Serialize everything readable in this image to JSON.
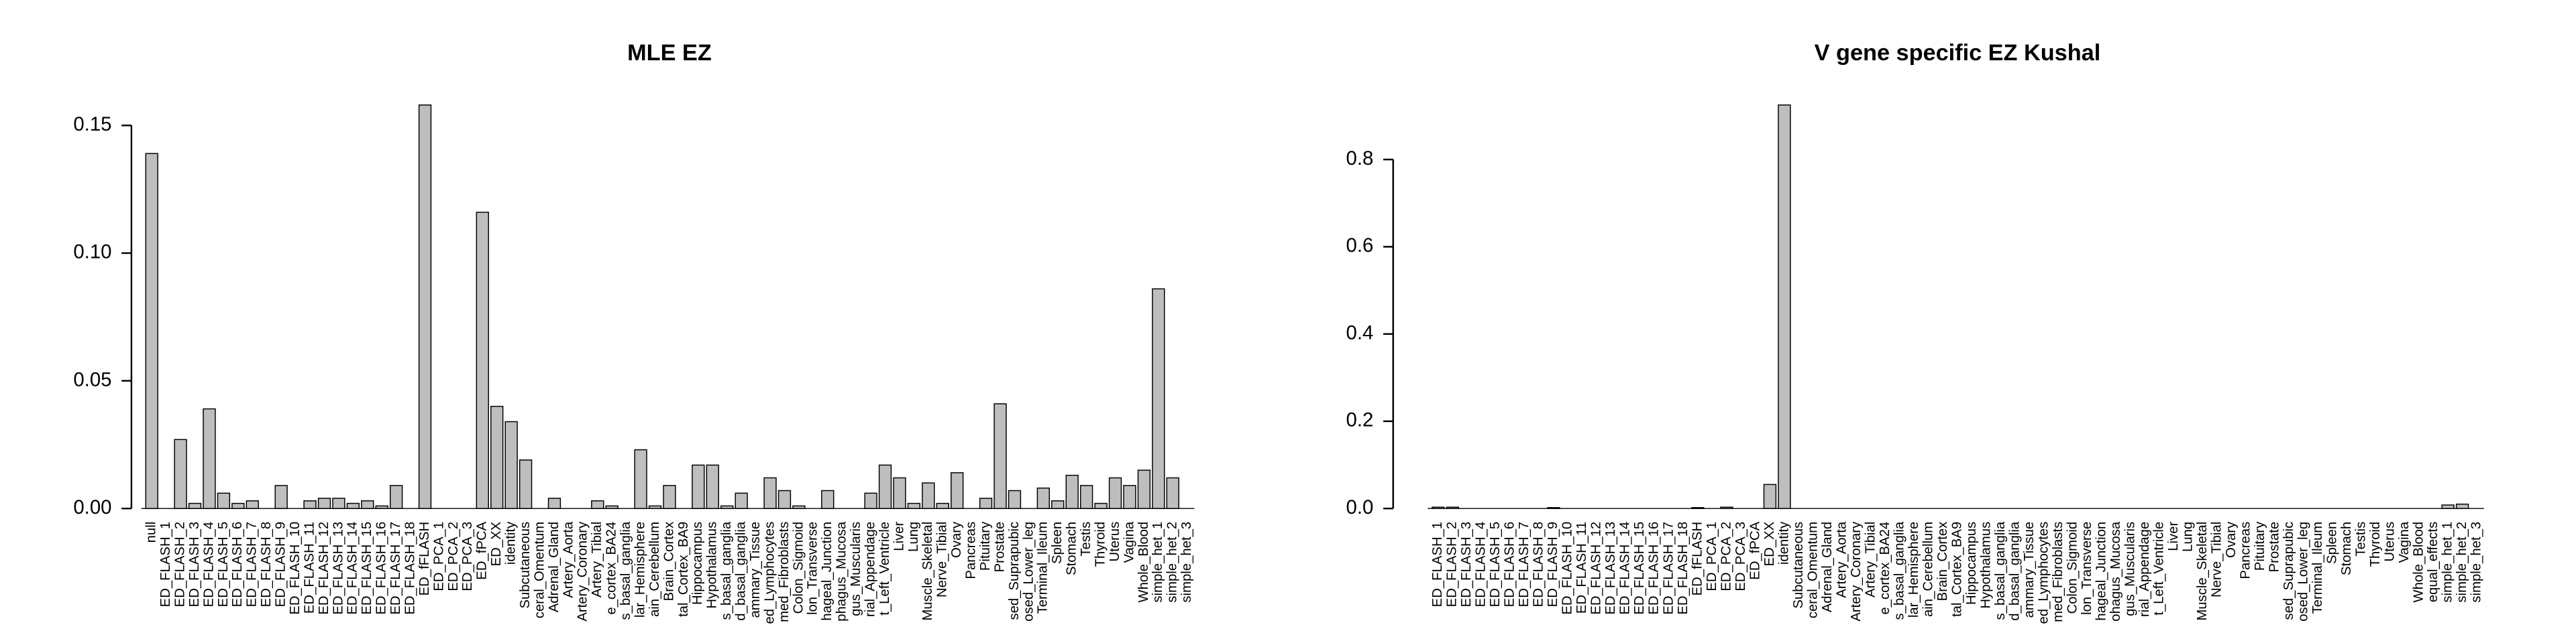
{
  "chart_data": [
    {
      "type": "bar",
      "title": "MLE EZ",
      "categories": [
        "null",
        "ED_FLASH_1",
        "ED_FLASH_2",
        "ED_FLASH_3",
        "ED_FLASH_4",
        "ED_FLASH_5",
        "ED_FLASH_6",
        "ED_FLASH_7",
        "ED_FLASH_8",
        "ED_FLASH_9",
        "ED_FLASH_10",
        "ED_FLASH_11",
        "ED_FLASH_12",
        "ED_FLASH_13",
        "ED_FLASH_14",
        "ED_FLASH_15",
        "ED_FLASH_16",
        "ED_FLASH_17",
        "ED_FLASH_18",
        "ED_fFLASH",
        "ED_PCA_1",
        "ED_PCA_2",
        "ED_PCA_3",
        "ED_fPCA",
        "ED_XX",
        "identity",
        "Subcutaneous",
        "ceral_Omentum",
        "Adrenal_Gland",
        "Artery_Aorta",
        "Artery_Coronary",
        "Artery_Tibial",
        "e_cortex_BA24",
        "s_basal_ganglia",
        "lar_Hemisphere",
        "ain_Cerebellum",
        "Brain_Cortex",
        "tal_Cortex_BA9",
        "Hippocampus",
        "Hypothalamus",
        "s_basal_ganglia",
        "d_basal_ganglia",
        "ammary_Tissue",
        "ed_Lymphocytes",
        "med_Fibroblasts",
        "Colon_Sigmoid",
        "lon_Transverse",
        "hageal_Junction",
        "phagus_Mucosa",
        "gus_Muscularis",
        "rial_Appendage",
        "t_Left_Ventricle",
        "Liver",
        "Lung",
        "Muscle_Skeletal",
        "Nerve_Tibial",
        "Ovary",
        "Pancreas",
        "Pituitary",
        "Prostate",
        "sed_Suprapubic",
        "osed_Lower_leg",
        "Terminal_Ileum",
        "Spleen",
        "Stomach",
        "Testis",
        "Thyroid",
        "Uterus",
        "Vagina",
        "Whole_Blood",
        "simple_het_1",
        "simple_het_2",
        "simple_het_3"
      ],
      "values": [
        0.139,
        0,
        0.027,
        0.002,
        0.039,
        0.006,
        0.002,
        0.003,
        0,
        0.009,
        0,
        0.003,
        0.004,
        0.004,
        0.002,
        0.003,
        0.001,
        0.009,
        0,
        0.158,
        0,
        0,
        0,
        0.116,
        0.04,
        0.034,
        0.019,
        0,
        0.004,
        0,
        0,
        0.003,
        0.001,
        0,
        0.023,
        0.001,
        0.009,
        0,
        0.017,
        0.017,
        0.001,
        0.006,
        0,
        0.012,
        0.007,
        0.001,
        0,
        0.007,
        0,
        0,
        0.006,
        0.017,
        0.012,
        0.002,
        0.01,
        0.002,
        0.014,
        0,
        0.004,
        0.041,
        0.007,
        0,
        0.008,
        0.003,
        0.013,
        0.009,
        0.002,
        0.012,
        0.009,
        0.015,
        0.086,
        0.012,
        0
      ],
      "color": "#bebebe",
      "ylim": [
        0,
        0.158
      ],
      "yticks": [
        {
          "value": 0,
          "label": "0.00"
        },
        {
          "value": 0.05,
          "label": "0.05"
        },
        {
          "value": 0.1,
          "label": "0.10"
        },
        {
          "value": 0.15,
          "label": "0.15"
        }
      ]
    },
    {
      "type": "bar",
      "title": "V gene specific EZ Kushal",
      "categories": [
        "ED_FLASH_1",
        "ED_FLASH_2",
        "ED_FLASH_3",
        "ED_FLASH_4",
        "ED_FLASH_5",
        "ED_FLASH_6",
        "ED_FLASH_7",
        "ED_FLASH_8",
        "ED_FLASH_9",
        "ED_FLASH_10",
        "ED_FLASH_11",
        "ED_FLASH_12",
        "ED_FLASH_13",
        "ED_FLASH_14",
        "ED_FLASH_15",
        "ED_FLASH_16",
        "ED_FLASH_17",
        "ED_FLASH_18",
        "ED_fFLASH",
        "ED_PCA_1",
        "ED_PCA_2",
        "ED_PCA_3",
        "ED_fPCA",
        "ED_XX",
        "identity",
        "Subcutaneous",
        "ceral_Omentum",
        "Adrenal_Gland",
        "Artery_Aorta",
        "Artery_Coronary",
        "Artery_Tibial",
        "e_cortex_BA24",
        "s_basal_ganglia",
        "lar_Hemisphere",
        "ain_Cerebellum",
        "Brain_Cortex",
        "tal_Cortex_BA9",
        "Hippocampus",
        "Hypothalamus",
        "s_basal_ganglia",
        "d_basal_ganglia",
        "ammary_Tissue",
        "ed_Lymphocytes",
        "med_Fibroblasts",
        "Colon_Sigmoid",
        "lon_Transverse",
        "hageal_Junction",
        "ohagus_Mucosa",
        "gus_Muscularis",
        "rial_Appendage",
        "t_Left_Ventricle",
        "Liver",
        "Lung",
        "Muscle_Skeletal",
        "Nerve_Tibial",
        "Ovary",
        "Pancreas",
        "Pituitary",
        "Prostate",
        "sed_Suprapubic",
        "osed_Lower_leg",
        "Terminal_Ileum",
        "Spleen",
        "Stomach",
        "Testis",
        "Thyroid",
        "Uterus",
        "Vagina",
        "Whole_Blood",
        "equal_effects",
        "simple_het_1",
        "simple_het_2",
        "simple_het_3"
      ],
      "values": [
        0.003,
        0.003,
        0,
        0,
        0,
        0,
        0,
        0,
        0.002,
        0,
        0,
        0,
        0,
        0,
        0,
        0,
        0,
        0,
        0.002,
        0,
        0.003,
        0,
        0,
        0.055,
        0.925,
        0,
        0,
        0,
        0,
        0,
        0,
        0,
        0,
        0,
        0,
        0,
        0,
        0,
        0,
        0,
        0,
        0,
        0,
        0,
        0,
        0,
        0,
        0,
        0,
        0,
        0,
        0,
        0,
        0,
        0,
        0,
        0,
        0,
        0,
        0,
        0,
        0,
        0,
        0,
        0,
        0,
        0,
        0,
        0,
        0,
        0.008,
        0.01,
        0
      ],
      "color": "#bebebe",
      "ylim": [
        0,
        0.925
      ],
      "yticks": [
        {
          "value": 0,
          "label": "0.0"
        },
        {
          "value": 0.2,
          "label": "0.2"
        },
        {
          "value": 0.4,
          "label": "0.4"
        },
        {
          "value": 0.6,
          "label": "0.6"
        },
        {
          "value": 0.8,
          "label": "0.8"
        }
      ]
    }
  ]
}
